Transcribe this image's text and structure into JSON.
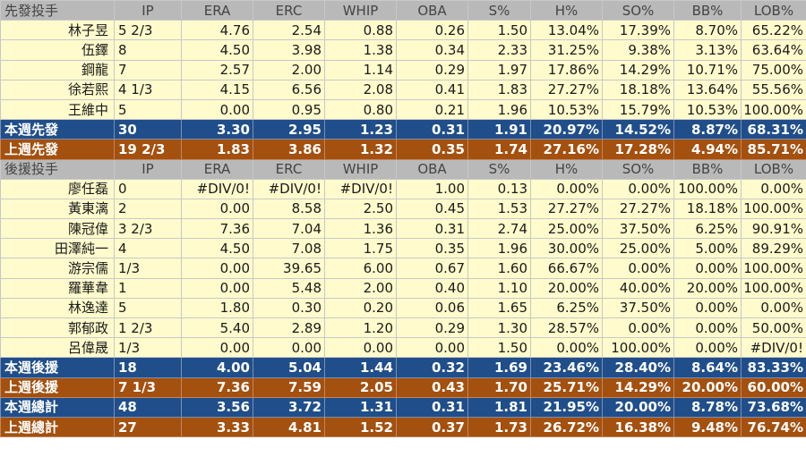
{
  "starters": {
    "header": [
      "先發投手",
      "IP",
      "ERA",
      "ERC",
      "WHIP",
      "OBA",
      "S%",
      "H%",
      "SO%",
      "BB%",
      "LOB%"
    ],
    "rows": [
      [
        "林子昱",
        "5 2/3",
        "4.76",
        "2.54",
        "0.88",
        "0.26",
        "1.50",
        "13.04%",
        "17.39%",
        "8.70%",
        "65.22%"
      ],
      [
        "伍鐸",
        "8",
        "4.50",
        "3.98",
        "1.38",
        "0.34",
        "2.33",
        "31.25%",
        "9.38%",
        "3.13%",
        "63.64%"
      ],
      [
        "鋼龍",
        "7",
        "2.57",
        "2.00",
        "1.14",
        "0.29",
        "1.97",
        "17.86%",
        "14.29%",
        "10.71%",
        "75.00%"
      ],
      [
        "徐若熙",
        "4 1/3",
        "4.15",
        "6.56",
        "2.08",
        "0.41",
        "1.83",
        "27.27%",
        "18.18%",
        "13.64%",
        "55.56%"
      ],
      [
        "王維中",
        "5",
        "0.00",
        "0.95",
        "0.80",
        "0.21",
        "1.96",
        "10.53%",
        "15.79%",
        "10.53%",
        "100.00%"
      ]
    ],
    "this_week": [
      "本週先發",
      "30",
      "3.30",
      "2.95",
      "1.23",
      "0.31",
      "1.91",
      "20.97%",
      "14.52%",
      "8.87%",
      "68.31%"
    ],
    "last_week": [
      "上週先發",
      "19 2/3",
      "1.83",
      "3.86",
      "1.32",
      "0.35",
      "1.74",
      "27.16%",
      "17.28%",
      "4.94%",
      "85.71%"
    ]
  },
  "relievers": {
    "header": [
      "後援投手",
      "IP",
      "ERA",
      "ERC",
      "WHIP",
      "OBA",
      "S%",
      "H%",
      "SO%",
      "BB%",
      "LOB%"
    ],
    "rows": [
      [
        "廖任磊",
        "0",
        "#DIV/0!",
        "#DIV/0!",
        "#DIV/0!",
        "1.00",
        "0.13",
        "0.00%",
        "0.00%",
        "100.00%",
        "0.00%"
      ],
      [
        "黃東漓",
        "2",
        "0.00",
        "8.58",
        "2.50",
        "0.45",
        "1.53",
        "27.27%",
        "27.27%",
        "18.18%",
        "100.00%"
      ],
      [
        "陳冠偉",
        "3 2/3",
        "7.36",
        "7.04",
        "1.36",
        "0.31",
        "2.74",
        "25.00%",
        "37.50%",
        "6.25%",
        "90.91%"
      ],
      [
        "田澤純一",
        "4",
        "4.50",
        "7.08",
        "1.75",
        "0.35",
        "1.96",
        "30.00%",
        "25.00%",
        "5.00%",
        "89.29%"
      ],
      [
        "游宗儒",
        "  1/3",
        "0.00",
        "39.65",
        "6.00",
        "0.67",
        "1.60",
        "66.67%",
        "0.00%",
        "0.00%",
        "100.00%"
      ],
      [
        "羅華韋",
        "1",
        "0.00",
        "5.48",
        "2.00",
        "0.40",
        "1.10",
        "20.00%",
        "40.00%",
        "20.00%",
        "100.00%"
      ],
      [
        "林逸達",
        "5",
        "1.80",
        "0.30",
        "0.20",
        "0.06",
        "1.65",
        "6.25%",
        "37.50%",
        "0.00%",
        "0.00%"
      ],
      [
        "郭郁政",
        "1 2/3",
        "5.40",
        "2.89",
        "1.20",
        "0.29",
        "1.30",
        "28.57%",
        "0.00%",
        "0.00%",
        "50.00%"
      ],
      [
        "呂偉晟",
        "  1/3",
        "0.00",
        "0.00",
        "0.00",
        "0.00",
        "1.50",
        "0.00%",
        "100.00%",
        "0.00%",
        "#DIV/0!"
      ]
    ],
    "this_week": [
      "本週後援",
      "18",
      "4.00",
      "5.04",
      "1.44",
      "0.32",
      "1.69",
      "23.46%",
      "28.40%",
      "8.64%",
      "83.33%"
    ],
    "last_week": [
      "上週後援",
      "7 1/3",
      "7.36",
      "7.59",
      "2.05",
      "0.43",
      "1.70",
      "25.71%",
      "14.29%",
      "20.00%",
      "60.00%"
    ]
  },
  "totals": {
    "this_week": [
      "本週總計",
      "48",
      "3.56",
      "3.72",
      "1.31",
      "0.31",
      "1.81",
      "21.95%",
      "20.00%",
      "8.78%",
      "73.68%"
    ],
    "last_week": [
      "上週總計",
      "27",
      "3.33",
      "4.81",
      "1.52",
      "0.37",
      "1.73",
      "26.72%",
      "16.38%",
      "9.48%",
      "76.74%"
    ]
  },
  "colors": {
    "header_bg": "#b9b9b9",
    "row_bg": "#fffbcc",
    "this_week_bg": "#1f4e8a",
    "last_week_bg": "#a4500f"
  }
}
